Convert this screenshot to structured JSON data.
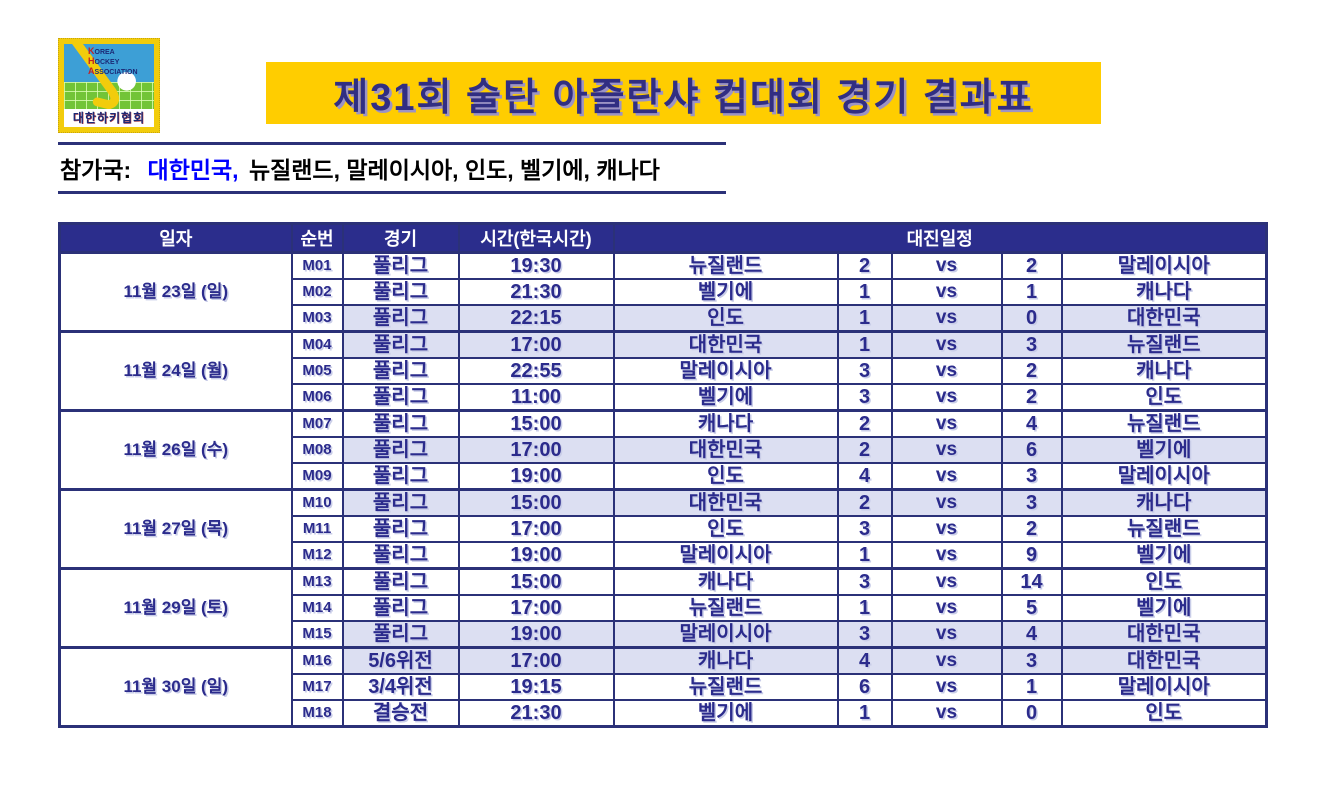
{
  "logo": {
    "org_en": [
      {
        "cap": "K",
        "rest": "OREA"
      },
      {
        "cap": "H",
        "rest": "OCKEY"
      },
      {
        "cap": "A",
        "rest": "SSOCIATION"
      }
    ],
    "org_kr": "대한하키협회"
  },
  "title": "제31회 술탄 아즐란샤 컵대회 경기 결과표",
  "participants": {
    "label": "참가국:",
    "highlight": "대한민국,",
    "rest": "뉴질랜드, 말레이시아, 인도, 벨기에, 캐나다"
  },
  "table": {
    "headers": {
      "date": "일자",
      "no": "순번",
      "match": "경기",
      "time": "시간(한국시간)",
      "schedule": "대진일정"
    },
    "vs_label": "vs",
    "groups": [
      {
        "date": "11월 23일 (일)",
        "rows": [
          {
            "no": "M01",
            "match": "풀리그",
            "time": "19:30",
            "team1": "뉴질랜드",
            "score1": "2",
            "score2": "2",
            "team2": "말레이시아",
            "highlight": false
          },
          {
            "no": "M02",
            "match": "풀리그",
            "time": "21:30",
            "team1": "벨기에",
            "score1": "1",
            "score2": "1",
            "team2": "캐나다",
            "highlight": false
          },
          {
            "no": "M03",
            "match": "풀리그",
            "time": "22:15",
            "team1": "인도",
            "score1": "1",
            "score2": "0",
            "team2": "대한민국",
            "highlight": true
          }
        ]
      },
      {
        "date": "11월 24일 (월)",
        "rows": [
          {
            "no": "M04",
            "match": "풀리그",
            "time": "17:00",
            "team1": "대한민국",
            "score1": "1",
            "score2": "3",
            "team2": "뉴질랜드",
            "highlight": true
          },
          {
            "no": "M05",
            "match": "풀리그",
            "time": "22:55",
            "team1": "말레이시아",
            "score1": "3",
            "score2": "2",
            "team2": "캐나다",
            "highlight": false
          },
          {
            "no": "M06",
            "match": "풀리그",
            "time": "11:00",
            "team1": "벨기에",
            "score1": "3",
            "score2": "2",
            "team2": "인도",
            "highlight": false
          }
        ]
      },
      {
        "date": "11월 26일 (수)",
        "rows": [
          {
            "no": "M07",
            "match": "풀리그",
            "time": "15:00",
            "team1": "캐나다",
            "score1": "2",
            "score2": "4",
            "team2": "뉴질랜드",
            "highlight": false
          },
          {
            "no": "M08",
            "match": "풀리그",
            "time": "17:00",
            "team1": "대한민국",
            "score1": "2",
            "score2": "6",
            "team2": "벨기에",
            "highlight": true
          },
          {
            "no": "M09",
            "match": "풀리그",
            "time": "19:00",
            "team1": "인도",
            "score1": "4",
            "score2": "3",
            "team2": "말레이시아",
            "highlight": false
          }
        ]
      },
      {
        "date": "11월 27일 (목)",
        "rows": [
          {
            "no": "M10",
            "match": "풀리그",
            "time": "15:00",
            "team1": "대한민국",
            "score1": "2",
            "score2": "3",
            "team2": "캐나다",
            "highlight": true
          },
          {
            "no": "M11",
            "match": "풀리그",
            "time": "17:00",
            "team1": "인도",
            "score1": "3",
            "score2": "2",
            "team2": "뉴질랜드",
            "highlight": false
          },
          {
            "no": "M12",
            "match": "풀리그",
            "time": "19:00",
            "team1": "말레이시아",
            "score1": "1",
            "score2": "9",
            "team2": "벨기에",
            "highlight": false
          }
        ]
      },
      {
        "date": "11월 29일 (토)",
        "rows": [
          {
            "no": "M13",
            "match": "풀리그",
            "time": "15:00",
            "team1": "캐나다",
            "score1": "3",
            "score2": "14",
            "team2": "인도",
            "highlight": false
          },
          {
            "no": "M14",
            "match": "풀리그",
            "time": "17:00",
            "team1": "뉴질랜드",
            "score1": "1",
            "score2": "5",
            "team2": "벨기에",
            "highlight": false
          },
          {
            "no": "M15",
            "match": "풀리그",
            "time": "19:00",
            "team1": "말레이시아",
            "score1": "3",
            "score2": "4",
            "team2": "대한민국",
            "highlight": true
          }
        ]
      },
      {
        "date": "11월 30일 (일)",
        "rows": [
          {
            "no": "M16",
            "match": "5/6위전",
            "time": "17:00",
            "team1": "캐나다",
            "score1": "4",
            "score2": "3",
            "team2": "대한민국",
            "highlight": true
          },
          {
            "no": "M17",
            "match": "3/4위전",
            "time": "19:15",
            "team1": "뉴질랜드",
            "score1": "6",
            "score2": "1",
            "team2": "말레이시아",
            "highlight": false
          },
          {
            "no": "M18",
            "match": "결승전",
            "time": "21:30",
            "team1": "벨기에",
            "score1": "1",
            "score2": "0",
            "team2": "인도",
            "highlight": false
          }
        ]
      }
    ]
  },
  "colors": {
    "navy_text": "#2B2B8C",
    "border_navy": "#2B3178",
    "header_bg": "#2B2D8C",
    "highlight_row": "#DCDFF2",
    "banner_yellow": "#FFCD00",
    "korea_blue": "#0000FF"
  }
}
